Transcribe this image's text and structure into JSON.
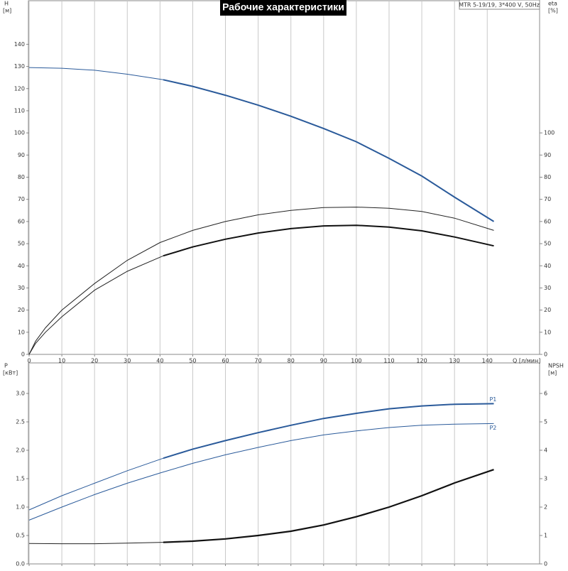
{
  "chart_data": [
    {
      "type": "line",
      "title": "Рабочие характеристики",
      "note": "MTR 5-19/19, 3*400 V, 50Hz",
      "ylabel": "H",
      "ylabel_unit": "[м]",
      "y2label": "eta",
      "y2label_unit": "[%]",
      "xlabel": "Q [л/мин]",
      "xlim": [
        0,
        156
      ],
      "xticks": [
        0,
        10,
        20,
        30,
        40,
        50,
        60,
        70,
        80,
        90,
        100,
        110,
        120,
        130,
        140
      ],
      "xtick_labels": true,
      "ylim": [
        0,
        160
      ],
      "yticks": [
        0,
        10,
        20,
        30,
        40,
        50,
        60,
        70,
        80,
        90,
        100,
        110,
        120,
        130,
        140
      ],
      "y2lim": [
        0,
        160
      ],
      "y2ticks": [
        0,
        10,
        20,
        30,
        40,
        50,
        60,
        70,
        80,
        90,
        100
      ],
      "grid": true,
      "series": [
        {
          "color": "#2a5a9a",
          "width": 1,
          "x": [
            0,
            10,
            20,
            30,
            41
          ],
          "values": [
            129.5,
            129.2,
            128.3,
            126.5,
            124
          ]
        },
        {
          "color": "#2a5a9a",
          "width": 2,
          "x": [
            41,
            50,
            60,
            70,
            80,
            90,
            100,
            110,
            120,
            130,
            142
          ],
          "values": [
            124,
            121,
            117,
            112.5,
            107.5,
            102,
            96,
            88.5,
            80.5,
            71,
            60
          ]
        },
        {
          "color": "#222222",
          "width": 1,
          "axis": "y2",
          "x": [
            0,
            2,
            5,
            10,
            20,
            30,
            40,
            50,
            60,
            70,
            80,
            90,
            100,
            110,
            120,
            130,
            142
          ],
          "values": [
            0,
            6,
            12,
            20,
            32,
            42.5,
            50.5,
            56,
            60,
            63,
            65,
            66.3,
            66.5,
            66,
            64.5,
            61.5,
            56
          ]
        },
        {
          "color": "#222222",
          "width": 1,
          "axis": "y2",
          "x": [
            0,
            2,
            5,
            10,
            20,
            30,
            41
          ],
          "values": [
            0,
            5,
            10,
            17,
            29,
            37.5,
            44.5
          ]
        },
        {
          "color": "#111111",
          "width": 2,
          "axis": "y2",
          "x": [
            41,
            50,
            60,
            70,
            80,
            90,
            100,
            110,
            120,
            130,
            142
          ],
          "values": [
            44.5,
            48.5,
            52,
            54.8,
            56.8,
            58,
            58.3,
            57.5,
            55.8,
            53,
            49
          ]
        }
      ]
    },
    {
      "type": "line",
      "ylabel": "P",
      "ylabel_unit": "[кВт]",
      "y2label": "NPSH",
      "y2label_unit": "[м]",
      "xlim": [
        0,
        156
      ],
      "xticks": [
        0,
        10,
        20,
        30,
        40,
        50,
        60,
        70,
        80,
        90,
        100,
        110,
        120,
        130,
        140
      ],
      "xtick_labels": false,
      "ylim": [
        0,
        3.55
      ],
      "yticks": [
        {
          "value": 0,
          "label": "0.0"
        },
        0.5,
        {
          "value": 1,
          "label": "1.0"
        },
        1.5,
        {
          "value": 2,
          "label": "2.0"
        },
        2.5,
        {
          "value": 3,
          "label": "3.0"
        }
      ],
      "y2lim": [
        0,
        7.1
      ],
      "y2ticks": [
        0,
        1,
        2,
        3,
        4,
        5,
        6
      ],
      "grid": true,
      "series": [
        {
          "color": "#2a5a9a",
          "width": 1,
          "x": [
            0,
            10,
            20,
            30,
            41
          ],
          "values": [
            0.95,
            1.2,
            1.42,
            1.64,
            1.86
          ]
        },
        {
          "name": "P1",
          "color": "#2a5a9a",
          "width": 2,
          "x": [
            41,
            50,
            60,
            70,
            80,
            90,
            100,
            110,
            120,
            130,
            142
          ],
          "values": [
            1.86,
            2.02,
            2.17,
            2.31,
            2.44,
            2.56,
            2.65,
            2.73,
            2.78,
            2.81,
            2.82
          ]
        },
        {
          "name": "P2",
          "color": "#2a5a9a",
          "width": 1,
          "x": [
            0,
            10,
            20,
            30,
            40,
            50,
            60,
            70,
            80,
            90,
            100,
            110,
            120,
            130,
            142
          ],
          "values": [
            0.77,
            1.0,
            1.22,
            1.42,
            1.6,
            1.77,
            1.92,
            2.05,
            2.17,
            2.27,
            2.34,
            2.4,
            2.44,
            2.46,
            2.47
          ]
        },
        {
          "color": "#222222",
          "width": 1,
          "axis": "y2",
          "x": [
            0,
            10,
            20,
            30,
            41
          ],
          "values": [
            0.72,
            0.71,
            0.71,
            0.73,
            0.76
          ]
        },
        {
          "color": "#111111",
          "width": 2.2,
          "axis": "y2",
          "x": [
            41,
            50,
            60,
            70,
            80,
            90,
            100,
            110,
            120,
            130,
            142
          ],
          "values": [
            0.76,
            0.8,
            0.88,
            1.0,
            1.15,
            1.37,
            1.66,
            2.0,
            2.4,
            2.85,
            3.32
          ]
        }
      ]
    }
  ]
}
